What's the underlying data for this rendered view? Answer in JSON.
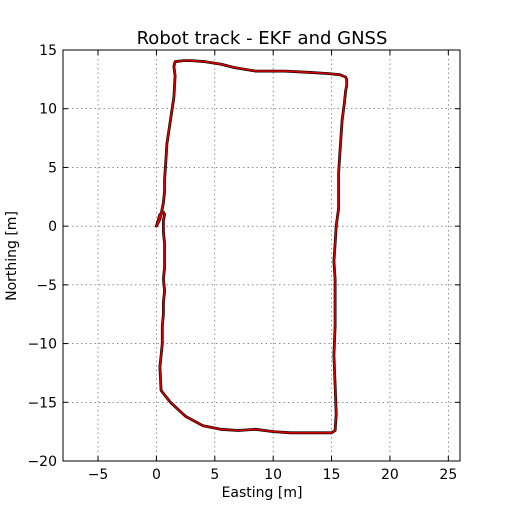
{
  "chart_data": {
    "type": "line",
    "title": "Robot track - EKF and GNSS",
    "xlabel": "Easting [m]",
    "ylabel": "Northing [m]",
    "xlim": [
      -8,
      26
    ],
    "ylim": [
      -20,
      15
    ],
    "xticks": [
      -5,
      0,
      5,
      10,
      15,
      20,
      25
    ],
    "yticks": [
      -20,
      -15,
      -10,
      -5,
      0,
      5,
      10,
      15
    ],
    "xtick_labels": [
      "−5",
      "0",
      "5",
      "10",
      "15",
      "20",
      "25"
    ],
    "ytick_labels": [
      "−20",
      "−15",
      "−10",
      "−5",
      "0",
      "5",
      "10",
      "15"
    ],
    "grid": true,
    "series": [
      {
        "color": "#000000",
        "x": [
          0.0,
          0.3,
          0.6,
          0.7,
          0.6,
          0.6,
          0.7,
          0.7,
          0.7,
          0.6,
          0.7,
          0.6,
          0.6,
          0.5,
          0.5,
          0.3,
          0.4,
          1.2,
          2.5,
          4.0,
          5.5,
          7.0,
          8.5,
          10.0,
          11.5,
          13.0,
          14.5,
          15.0,
          15.3,
          15.4,
          15.3,
          15.2,
          15.3,
          15.3,
          15.3,
          15.2,
          15.3,
          15.4,
          15.6,
          15.6,
          15.6,
          15.7,
          15.8,
          15.9,
          16.1,
          16.2,
          16.3,
          16.3,
          16.2,
          15.7,
          14.6,
          13.0,
          11.0,
          8.5,
          6.7,
          5.5,
          4.2,
          3.0,
          2.3,
          1.6,
          1.5,
          1.6,
          1.5,
          1.2,
          0.9,
          0.8,
          0.7,
          0.7,
          0.6,
          0.4,
          0.3,
          0.0
        ],
        "y": [
          0.0,
          1.0,
          1.2,
          1.0,
          0.5,
          -0.5,
          -1.5,
          -2.5,
          -3.5,
          -4.5,
          -5.5,
          -6.5,
          -7.5,
          -8.5,
          -10.0,
          -12.0,
          -14.0,
          -15.0,
          -16.2,
          -17.0,
          -17.3,
          -17.4,
          -17.3,
          -17.5,
          -17.6,
          -17.6,
          -17.6,
          -17.6,
          -17.4,
          -16.0,
          -13.5,
          -11.0,
          -8.5,
          -6.5,
          -4.5,
          -3.0,
          -1.5,
          0.0,
          1.5,
          3.0,
          4.5,
          6.0,
          7.5,
          9.0,
          10.5,
          11.5,
          12.0,
          12.5,
          12.7,
          12.9,
          13.0,
          13.1,
          13.2,
          13.2,
          13.5,
          13.8,
          14.0,
          14.1,
          14.1,
          14.0,
          13.6,
          12.8,
          11.0,
          9.0,
          7.0,
          5.5,
          4.0,
          3.0,
          2.0,
          1.0,
          0.6,
          0.0
        ]
      },
      {
        "color": "#d40000",
        "x": [
          0.0,
          0.3,
          0.6,
          0.7,
          0.6,
          0.6,
          0.7,
          0.7,
          0.7,
          0.6,
          0.7,
          0.6,
          0.6,
          0.5,
          0.5,
          0.3,
          0.4,
          1.2,
          2.5,
          4.0,
          5.5,
          7.0,
          8.5,
          10.0,
          11.5,
          13.0,
          14.5,
          15.0,
          15.3,
          15.4,
          15.3,
          15.2,
          15.3,
          15.3,
          15.3,
          15.2,
          15.3,
          15.4,
          15.6,
          15.6,
          15.6,
          15.7,
          15.8,
          15.9,
          16.1,
          16.2,
          16.3,
          16.3,
          16.2,
          15.7,
          14.6,
          13.0,
          11.0,
          8.5,
          6.7,
          5.5,
          4.2,
          3.0,
          2.3,
          1.6,
          1.5,
          1.6,
          1.5,
          1.2,
          0.9,
          0.8,
          0.7,
          0.7,
          0.6,
          0.4,
          0.3,
          0.0
        ],
        "y": [
          0.0,
          1.0,
          1.2,
          1.0,
          0.5,
          -0.5,
          -1.5,
          -2.5,
          -3.5,
          -4.5,
          -5.5,
          -6.5,
          -7.5,
          -8.5,
          -10.0,
          -12.0,
          -14.0,
          -15.0,
          -16.2,
          -17.0,
          -17.3,
          -17.4,
          -17.3,
          -17.5,
          -17.6,
          -17.6,
          -17.6,
          -17.6,
          -17.4,
          -16.0,
          -13.5,
          -11.0,
          -8.5,
          -6.5,
          -4.5,
          -3.0,
          -1.5,
          0.0,
          1.5,
          3.0,
          4.5,
          6.0,
          7.5,
          9.0,
          10.5,
          11.5,
          12.0,
          12.5,
          12.7,
          12.9,
          13.0,
          13.1,
          13.2,
          13.2,
          13.5,
          13.8,
          14.0,
          14.1,
          14.1,
          14.0,
          13.6,
          12.8,
          11.0,
          9.0,
          7.0,
          5.5,
          4.0,
          3.0,
          2.0,
          1.0,
          0.6,
          0.0
        ]
      }
    ]
  }
}
